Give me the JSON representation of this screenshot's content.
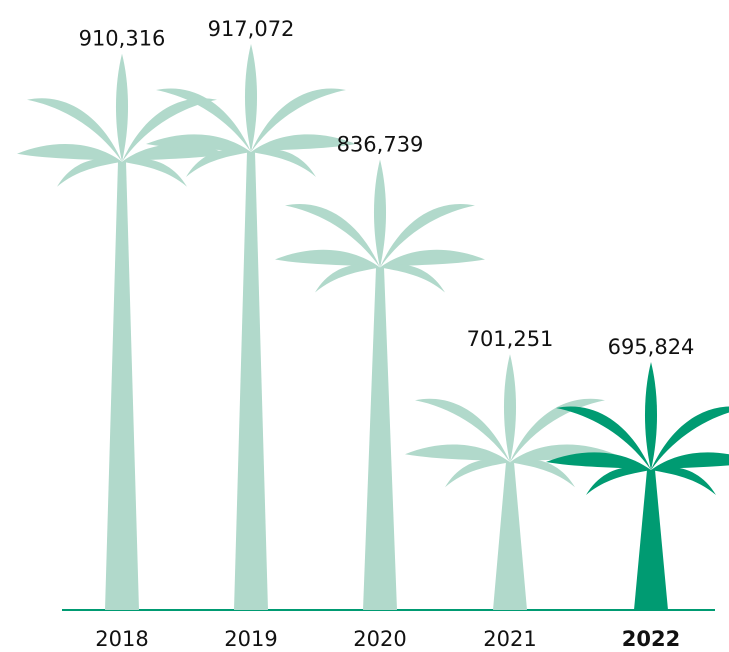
{
  "chart_data": {
    "type": "palm",
    "categories": [
      "2018",
      "2019",
      "2020",
      "2021",
      "2022"
    ],
    "values": [
      910316,
      917072,
      836739,
      701251,
      695824
    ],
    "value_labels": [
      "910,316",
      "917,072",
      "836,739",
      "701,251",
      "695,824"
    ],
    "color": "#b1d9cb",
    "highlight_color": "#009b72",
    "highlight": 4
  }
}
